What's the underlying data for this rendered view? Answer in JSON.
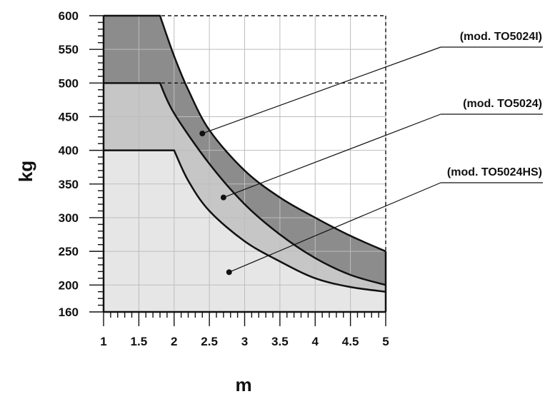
{
  "chart_data": {
    "type": "area",
    "xlabel": "m",
    "ylabel": "kg",
    "xlim": [
      1,
      5
    ],
    "ylim": [
      160,
      600
    ],
    "x_ticks": [
      "1",
      "1.5",
      "2",
      "2.5",
      "3",
      "3.5",
      "4",
      "4.5",
      "5"
    ],
    "y_ticks": [
      "160",
      "200",
      "250",
      "300",
      "350",
      "400",
      "450",
      "500",
      "550",
      "600"
    ],
    "grid": true,
    "series": [
      {
        "name": "(mod. TO5024I)",
        "color": "#8c8c8c",
        "x": [
          1,
          1.8,
          2.0,
          2.2,
          2.5,
          3.0,
          3.5,
          4.0,
          4.5,
          5.0
        ],
        "y": [
          600,
          600,
          540,
          490,
          430,
          370,
          330,
          300,
          273,
          250
        ]
      },
      {
        "name": "(mod. TO5024)",
        "color": "#c6c6c6",
        "x": [
          1,
          1.8,
          2.0,
          2.5,
          3.0,
          3.5,
          4.0,
          4.5,
          5.0
        ],
        "y": [
          500,
          500,
          455,
          380,
          320,
          275,
          240,
          215,
          200
        ]
      },
      {
        "name": "(mod. TO5024HS)",
        "color": "#e6e6e6",
        "x": [
          1,
          2.0,
          2.2,
          2.5,
          3.0,
          3.5,
          4.0,
          4.5,
          5.0
        ],
        "y": [
          400,
          400,
          355,
          310,
          265,
          235,
          210,
          197,
          190
        ]
      }
    ],
    "callouts": [
      {
        "label": "(mod. TO5024I)",
        "point": [
          2.4,
          425
        ]
      },
      {
        "label": "(mod. TO5024)",
        "point": [
          2.7,
          330
        ]
      },
      {
        "label": "(mod. TO5024HS)",
        "point": [
          2.78,
          219
        ]
      }
    ]
  }
}
